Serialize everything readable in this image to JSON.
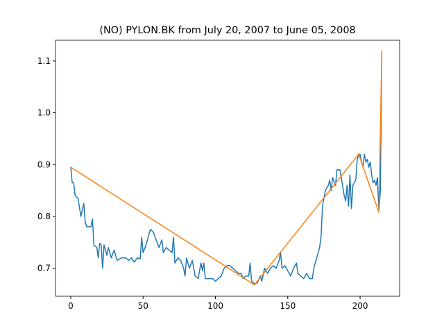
{
  "chart_data": {
    "type": "line",
    "title": "(NO) PYLON.BK from July 20, 2007 to June 05, 2008",
    "xlim": [
      -10.55,
      227.3
    ],
    "ylim": [
      0.646,
      1.14
    ],
    "xticks": [
      0,
      50,
      100,
      150,
      200
    ],
    "yticks": [
      0.7,
      0.8,
      0.9,
      {
        "value": 1,
        "label": "1.0"
      },
      1.1
    ],
    "series": [
      {
        "color": "#1f77b4",
        "x": [
          0,
          1,
          2,
          3,
          5,
          7,
          9,
          10,
          11,
          14,
          15,
          16,
          18,
          19,
          20,
          21,
          22,
          23,
          25,
          26,
          28,
          30,
          32,
          35,
          38,
          40,
          42,
          44,
          46,
          48,
          49,
          50,
          52,
          54,
          55,
          57,
          59,
          61,
          63,
          64,
          66,
          68,
          70,
          71,
          72,
          74,
          76,
          78,
          79,
          80,
          82,
          84,
          86,
          88,
          90,
          91,
          92,
          93,
          95,
          98,
          100,
          102,
          104,
          106,
          108,
          110,
          112,
          114,
          116,
          118,
          119,
          121,
          123,
          124,
          125,
          127,
          129,
          131,
          132,
          134,
          136,
          138,
          140,
          142,
          144,
          145,
          146,
          148,
          150,
          152,
          154,
          156,
          157,
          159,
          161,
          163,
          165,
          167,
          168,
          170,
          172,
          173,
          174,
          176,
          178,
          179,
          180,
          181,
          183,
          184,
          186,
          187,
          189,
          190,
          191,
          192,
          193,
          194,
          195,
          197,
          198,
          199,
          200,
          201,
          202,
          203,
          204,
          205,
          206,
          207,
          208,
          209,
          210,
          211,
          212,
          213,
          214,
          215
        ],
        "values": [
          0.895,
          0.865,
          0.865,
          0.84,
          0.835,
          0.8,
          0.825,
          0.79,
          0.78,
          0.78,
          0.795,
          0.745,
          0.74,
          0.72,
          0.748,
          0.745,
          0.7,
          0.745,
          0.725,
          0.74,
          0.72,
          0.735,
          0.715,
          0.72,
          0.72,
          0.715,
          0.72,
          0.712,
          0.72,
          0.718,
          0.76,
          0.73,
          0.745,
          0.765,
          0.775,
          0.77,
          0.755,
          0.74,
          0.755,
          0.73,
          0.74,
          0.735,
          0.73,
          0.76,
          0.71,
          0.72,
          0.715,
          0.7,
          0.685,
          0.72,
          0.7,
          0.715,
          0.685,
          0.68,
          0.71,
          0.695,
          0.71,
          0.68,
          0.68,
          0.68,
          0.675,
          0.68,
          0.685,
          0.7,
          0.705,
          0.705,
          0.7,
          0.695,
          0.69,
          0.69,
          0.68,
          0.685,
          0.685,
          0.71,
          0.675,
          0.67,
          0.672,
          0.685,
          0.675,
          0.7,
          0.69,
          0.7,
          0.705,
          0.7,
          0.715,
          0.73,
          0.7,
          0.705,
          0.695,
          0.685,
          0.7,
          0.71,
          0.69,
          0.685,
          0.68,
          0.69,
          0.68,
          0.68,
          0.7,
          0.72,
          0.74,
          0.76,
          0.82,
          0.85,
          0.86,
          0.87,
          0.85,
          0.875,
          0.86,
          0.89,
          0.89,
          0.875,
          0.84,
          0.83,
          0.86,
          0.82,
          0.88,
          0.815,
          0.86,
          0.87,
          0.91,
          0.92,
          0.92,
          0.905,
          0.895,
          0.92,
          0.905,
          0.91,
          0.895,
          0.905,
          0.88,
          0.865,
          0.87,
          0.86,
          0.875,
          0.81,
          0.85,
          1.12
        ]
      },
      {
        "color": "#ff7f0e",
        "x": [
          0,
          127,
          199,
          213,
          215
        ],
        "values": [
          0.895,
          0.668,
          0.92,
          0.808,
          1.12
        ]
      }
    ]
  }
}
